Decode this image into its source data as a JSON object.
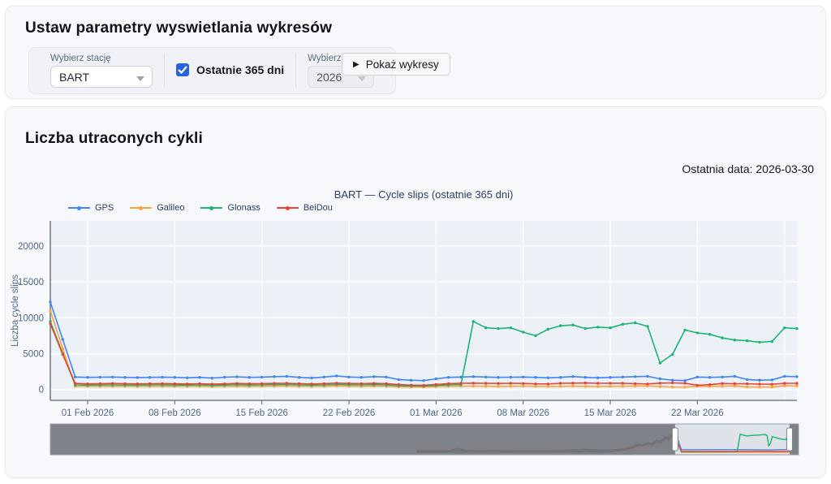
{
  "params_panel": {
    "title": "Ustaw parametry wyswietlania wykresów",
    "station_label": "Wybierz stację",
    "station_value": "BART",
    "checkbox_label": "Ostatnie 365 dni",
    "checkbox_checked": true,
    "year_label": "Wybierz rok",
    "year_value": "2026",
    "year_disabled": true,
    "button_icon": "▶",
    "button_label": "Pokaż wykresy"
  },
  "chart_panel": {
    "title": "Liczba utraconych cykli",
    "last_date_text": "Ostatnia data: 2026-03-30"
  },
  "chart_data": {
    "type": "line",
    "title": "BART — Cycle slips (ostatnie 365 dni)",
    "ylabel": "Liczba cycle slips",
    "legend_position": "top-left",
    "grid": true,
    "x_days": 60,
    "x_range_note": "days 0..60 = 29 Jan 2026 .. 30 Mar 2026, daily points",
    "ylim": [
      -1500,
      23500
    ],
    "y_ticks": [
      0,
      5000,
      10000,
      15000,
      20000
    ],
    "x_ticks": [
      {
        "day": 3,
        "label": "01 Feb 2026"
      },
      {
        "day": 10,
        "label": "08 Feb 2026"
      },
      {
        "day": 17,
        "label": "15 Feb 2026"
      },
      {
        "day": 24,
        "label": "22 Feb 2026"
      },
      {
        "day": 31,
        "label": "01 Mar 2026"
      },
      {
        "day": 38,
        "label": "08 Mar 2026"
      },
      {
        "day": 45,
        "label": "15 Mar 2026"
      },
      {
        "day": 52,
        "label": "22 Mar 2026"
      }
    ],
    "extra_gridline_days": [
      59
    ],
    "colors": {
      "plot_bg": "#ECF0F7",
      "grid": "#FFFFFF",
      "axis": "#5a6370",
      "tick_text": "#506784",
      "title_text": "#2A3F5F",
      "slider_bg": "#DEE2E9",
      "slider_border": "#9aa0a8",
      "slider_mask": "rgba(110,113,119,0.85)",
      "handle_fill": "#FFFFFF",
      "handle_stroke": "#7f8590"
    },
    "series": [
      {
        "name": "GPS",
        "color": "#4285F4",
        "values": [
          12200,
          7000,
          1750,
          1700,
          1720,
          1750,
          1700,
          1680,
          1700,
          1730,
          1700,
          1650,
          1700,
          1600,
          1720,
          1780,
          1700,
          1740,
          1800,
          1850,
          1700,
          1620,
          1750,
          1900,
          1750,
          1700,
          1800,
          1750,
          1400,
          1300,
          1250,
          1500,
          1700,
          1750,
          1800,
          1750,
          1700,
          1720,
          1750,
          1700,
          1650,
          1700,
          1820,
          1700,
          1650,
          1700,
          1750,
          1800,
          1850,
          1500,
          1300,
          1250,
          1750,
          1700,
          1750,
          1850,
          1400,
          1300,
          1350,
          1850,
          1800
        ]
      },
      {
        "name": "Galileo",
        "color": "#FAA43A",
        "values": [
          11000,
          5700,
          450,
          430,
          440,
          450,
          430,
          420,
          440,
          450,
          430,
          420,
          450,
          400,
          430,
          460,
          430,
          450,
          470,
          480,
          450,
          420,
          450,
          500,
          460,
          450,
          470,
          450,
          380,
          350,
          340,
          400,
          450,
          470,
          480,
          460,
          450,
          460,
          470,
          450,
          430,
          450,
          490,
          450,
          430,
          450,
          460,
          480,
          500,
          420,
          350,
          340,
          460,
          450,
          470,
          500,
          380,
          350,
          360,
          520,
          500
        ]
      },
      {
        "name": "Glonass",
        "color": "#1DB573",
        "values": [
          9500,
          5000,
          650,
          620,
          640,
          650,
          630,
          610,
          640,
          650,
          630,
          610,
          650,
          580,
          630,
          670,
          630,
          650,
          680,
          700,
          650,
          610,
          650,
          720,
          670,
          650,
          680,
          650,
          550,
          500,
          490,
          580,
          650,
          700,
          9500,
          8600,
          8500,
          8600,
          8000,
          7500,
          8400,
          8900,
          9000,
          8500,
          8700,
          8600,
          9100,
          9300,
          8800,
          3700,
          4900,
          8300,
          7900,
          7700,
          7200,
          6900,
          6800,
          6600,
          6700,
          8600,
          8500
        ]
      },
      {
        "name": "BeiDou",
        "color": "#EA4335",
        "values": [
          9200,
          4900,
          850,
          800,
          820,
          850,
          820,
          800,
          820,
          840,
          810,
          790,
          820,
          750,
          800,
          850,
          810,
          830,
          860,
          880,
          830,
          790,
          830,
          900,
          850,
          830,
          860,
          830,
          700,
          620,
          600,
          720,
          830,
          870,
          900,
          870,
          850,
          870,
          850,
          800,
          780,
          870,
          900,
          920,
          870,
          890,
          880,
          830,
          780,
          900,
          930,
          890,
          600,
          680,
          850,
          820,
          810,
          760,
          740,
          880,
          870
        ]
      }
    ],
    "rangeslider": {
      "selection": [
        0.835,
        0.988
      ],
      "vmax": 13000,
      "series": [
        {
          "name": "GPS",
          "color": "#4285F4",
          "points": [
            [
              0.49,
              1200
            ],
            [
              0.505,
              1350
            ],
            [
              0.52,
              1300
            ],
            [
              0.535,
              1350
            ],
            [
              0.545,
              2400
            ],
            [
              0.553,
              1500
            ],
            [
              0.57,
              1350
            ],
            [
              0.59,
              1400
            ],
            [
              0.61,
              1300
            ],
            [
              0.63,
              1400
            ],
            [
              0.65,
              1350
            ],
            [
              0.665,
              1400
            ],
            [
              0.68,
              1350
            ],
            [
              0.7,
              1600
            ],
            [
              0.715,
              2000
            ],
            [
              0.725,
              1700
            ],
            [
              0.74,
              1500
            ],
            [
              0.755,
              1700
            ],
            [
              0.768,
              2300
            ],
            [
              0.778,
              3200
            ],
            [
              0.786,
              4700
            ],
            [
              0.792,
              4100
            ],
            [
              0.798,
              5300
            ],
            [
              0.804,
              4700
            ],
            [
              0.81,
              6600
            ],
            [
              0.816,
              5900
            ],
            [
              0.822,
              8200
            ],
            [
              0.827,
              7200
            ],
            [
              0.8335,
              12200
            ],
            [
              0.8385,
              6900
            ],
            [
              0.8435,
              1700
            ],
            [
              0.87,
              1700
            ],
            [
              0.9,
              1750
            ],
            [
              0.93,
              1700
            ],
            [
              0.96,
              1600
            ],
            [
              0.975,
              1700
            ],
            [
              0.988,
              1800
            ]
          ]
        },
        {
          "name": "Galileo",
          "color": "#FAA43A",
          "points": [
            [
              0.49,
              500
            ],
            [
              0.53,
              520
            ],
            [
              0.57,
              500
            ],
            [
              0.61,
              520
            ],
            [
              0.65,
              500
            ],
            [
              0.7,
              550
            ],
            [
              0.74,
              520
            ],
            [
              0.768,
              1500
            ],
            [
              0.786,
              3600
            ],
            [
              0.798,
              4200
            ],
            [
              0.81,
              5400
            ],
            [
              0.822,
              6900
            ],
            [
              0.8335,
              11000
            ],
            [
              0.8385,
              5700
            ],
            [
              0.8435,
              450
            ],
            [
              0.9,
              460
            ],
            [
              0.95,
              480
            ],
            [
              0.988,
              500
            ]
          ]
        },
        {
          "name": "Glonass",
          "color": "#1DB573",
          "points": [
            [
              0.49,
              600
            ],
            [
              0.55,
              620
            ],
            [
              0.62,
              600
            ],
            [
              0.7,
              650
            ],
            [
              0.75,
              620
            ],
            [
              0.786,
              3800
            ],
            [
              0.798,
              4400
            ],
            [
              0.81,
              5600
            ],
            [
              0.822,
              7100
            ],
            [
              0.8335,
              9500
            ],
            [
              0.8385,
              5000
            ],
            [
              0.8435,
              650
            ],
            [
              0.88,
              660
            ],
            [
              0.918,
              680
            ],
            [
              0.922,
              9500
            ],
            [
              0.93,
              8600
            ],
            [
              0.94,
              8900
            ],
            [
              0.948,
              9100
            ],
            [
              0.955,
              9300
            ],
            [
              0.958,
              8800
            ],
            [
              0.96,
              3700
            ],
            [
              0.9625,
              4900
            ],
            [
              0.965,
              8300
            ],
            [
              0.975,
              7200
            ],
            [
              0.983,
              6700
            ],
            [
              0.9855,
              8600
            ],
            [
              0.988,
              8500
            ]
          ]
        },
        {
          "name": "BeiDou",
          "color": "#EA4335",
          "points": [
            [
              0.49,
              750
            ],
            [
              0.52,
              800
            ],
            [
              0.545,
              1500
            ],
            [
              0.57,
              800
            ],
            [
              0.6,
              850
            ],
            [
              0.63,
              800
            ],
            [
              0.66,
              820
            ],
            [
              0.69,
              850
            ],
            [
              0.715,
              1300
            ],
            [
              0.74,
              900
            ],
            [
              0.755,
              1100
            ],
            [
              0.768,
              1800
            ],
            [
              0.778,
              2600
            ],
            [
              0.786,
              4000
            ],
            [
              0.792,
              3500
            ],
            [
              0.798,
              4600
            ],
            [
              0.804,
              4100
            ],
            [
              0.81,
              5800
            ],
            [
              0.816,
              5200
            ],
            [
              0.822,
              7300
            ],
            [
              0.827,
              6500
            ],
            [
              0.8335,
              9300
            ],
            [
              0.8385,
              5000
            ],
            [
              0.8435,
              850
            ],
            [
              0.88,
              830
            ],
            [
              0.92,
              850
            ],
            [
              0.95,
              880
            ],
            [
              0.975,
              800
            ],
            [
              0.988,
              870
            ]
          ]
        }
      ]
    }
  }
}
